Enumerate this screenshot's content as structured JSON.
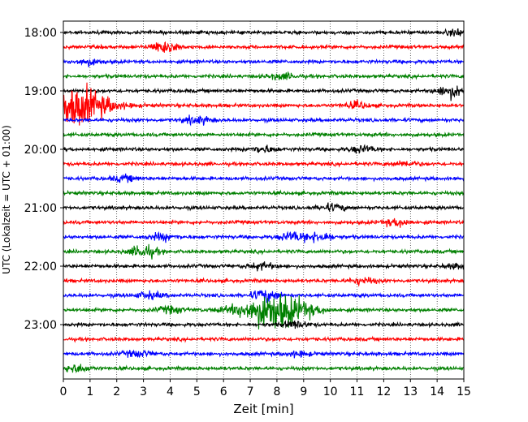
{
  "chart_data": {
    "type": "line",
    "title": "",
    "xlabel": "Zeit  [min]",
    "ylabel": "UTC (Lokalzeit = UTC + 01:00)",
    "xlim": [
      0,
      15
    ],
    "x_ticks": [
      0,
      1,
      2,
      3,
      4,
      5,
      6,
      7,
      8,
      9,
      10,
      11,
      12,
      13,
      14,
      15
    ],
    "y_tick_labels": [
      "18:00",
      "19:00",
      "20:00",
      "21:00",
      "22:00",
      "23:00"
    ],
    "grid": "vertical dotted at each minute",
    "trace_colors": [
      "#000000",
      "#ff0000",
      "#0000ff",
      "#008000"
    ],
    "row_start_times": [
      "18:00",
      "18:15",
      "18:30",
      "18:45",
      "19:00",
      "19:15",
      "19:30",
      "19:45",
      "20:00",
      "20:15",
      "20:30",
      "20:45",
      "21:00",
      "21:15",
      "21:30",
      "21:45",
      "22:00",
      "22:15",
      "22:30",
      "22:45",
      "23:00",
      "23:15",
      "23:30",
      "23:45"
    ],
    "events": [
      {
        "row": 0,
        "minute": 14.9,
        "amp": 0.6
      },
      {
        "row": 1,
        "minute": 3.8,
        "amp": 1.0
      },
      {
        "row": 2,
        "minute": 0.9,
        "amp": 0.5
      },
      {
        "row": 3,
        "minute": 8.2,
        "amp": 0.5
      },
      {
        "row": 4,
        "minute": 14.5,
        "amp": 1.0
      },
      {
        "row": 5,
        "minute": 0.4,
        "amp": 3.2
      },
      {
        "row": 5,
        "minute": 11.0,
        "amp": 0.5
      },
      {
        "row": 6,
        "minute": 5.0,
        "amp": 0.6
      },
      {
        "row": 8,
        "minute": 7.5,
        "amp": 0.5
      },
      {
        "row": 8,
        "minute": 11.2,
        "amp": 0.5
      },
      {
        "row": 9,
        "minute": 12.8,
        "amp": 0.4
      },
      {
        "row": 10,
        "minute": 2.3,
        "amp": 0.4
      },
      {
        "row": 12,
        "minute": 10.1,
        "amp": 0.5
      },
      {
        "row": 13,
        "minute": 12.5,
        "amp": 0.6
      },
      {
        "row": 14,
        "minute": 3.7,
        "amp": 0.5
      },
      {
        "row": 14,
        "minute": 8.6,
        "amp": 0.7
      },
      {
        "row": 14,
        "minute": 9.6,
        "amp": 0.7
      },
      {
        "row": 15,
        "minute": 3.0,
        "amp": 1.0
      },
      {
        "row": 16,
        "minute": 7.4,
        "amp": 0.5
      },
      {
        "row": 16,
        "minute": 14.8,
        "amp": 0.4
      },
      {
        "row": 17,
        "minute": 11.2,
        "amp": 0.5
      },
      {
        "row": 18,
        "minute": 3.2,
        "amp": 0.5
      },
      {
        "row": 18,
        "minute": 7.6,
        "amp": 1.0
      },
      {
        "row": 19,
        "minute": 7.9,
        "amp": 3.0
      },
      {
        "row": 19,
        "minute": 4.0,
        "amp": 0.5
      },
      {
        "row": 20,
        "minute": 8.7,
        "amp": 0.5
      },
      {
        "row": 22,
        "minute": 2.8,
        "amp": 0.5
      },
      {
        "row": 22,
        "minute": 8.8,
        "amp": 0.4
      },
      {
        "row": 23,
        "minute": 0.5,
        "amp": 0.6
      }
    ]
  }
}
